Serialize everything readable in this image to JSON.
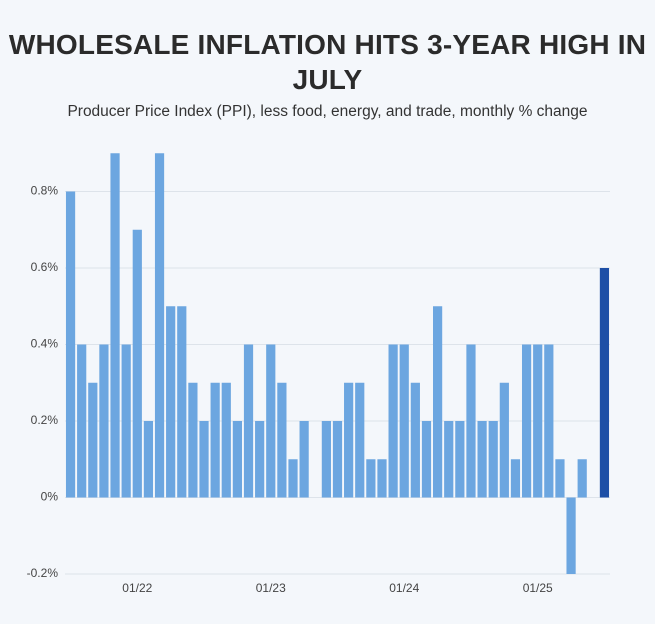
{
  "chart_data": {
    "type": "bar",
    "title": "WHOLESALE INFLATION HITS 3-YEAR HIGH IN JULY",
    "subtitle": "Producer Price Index (PPI), less food, energy, and trade, monthly % change",
    "categories": [
      null,
      null,
      null,
      null,
      null,
      null,
      "01/22",
      null,
      null,
      null,
      null,
      null,
      null,
      null,
      null,
      null,
      null,
      null,
      "01/23",
      null,
      null,
      null,
      null,
      null,
      null,
      null,
      null,
      null,
      null,
      null,
      "01/24",
      null,
      null,
      null,
      null,
      null,
      null,
      null,
      null,
      null,
      null,
      null,
      "01/25",
      null,
      null,
      null,
      null,
      null,
      null
    ],
    "values": [
      0.8,
      0.4,
      0.3,
      0.4,
      0.9,
      0.4,
      0.7,
      0.2,
      0.9,
      0.5,
      0.5,
      0.3,
      0.2,
      0.3,
      0.3,
      0.2,
      0.4,
      0.2,
      0.4,
      0.3,
      0.1,
      0.2,
      0,
      0.2,
      0.2,
      0.3,
      0.3,
      0.1,
      0.1,
      0.4,
      0.4,
      0.3,
      0.2,
      0.5,
      0.2,
      0.2,
      0.4,
      0.2,
      0.2,
      0.3,
      0.1,
      0.4,
      0.4,
      0.4,
      0.1,
      -0.2,
      0.1,
      0,
      0.6
    ],
    "colors": [
      "#6ca6e0",
      "#6ca6e0",
      "#6ca6e0",
      "#6ca6e0",
      "#6ca6e0",
      "#6ca6e0",
      "#6ca6e0",
      "#6ca6e0",
      "#6ca6e0",
      "#6ca6e0",
      "#6ca6e0",
      "#6ca6e0",
      "#6ca6e0",
      "#6ca6e0",
      "#6ca6e0",
      "#6ca6e0",
      "#6ca6e0",
      "#6ca6e0",
      "#6ca6e0",
      "#6ca6e0",
      "#6ca6e0",
      "#6ca6e0",
      "#6ca6e0",
      "#6ca6e0",
      "#6ca6e0",
      "#6ca6e0",
      "#6ca6e0",
      "#6ca6e0",
      "#6ca6e0",
      "#6ca6e0",
      "#6ca6e0",
      "#6ca6e0",
      "#6ca6e0",
      "#6ca6e0",
      "#6ca6e0",
      "#6ca6e0",
      "#6ca6e0",
      "#6ca6e0",
      "#6ca6e0",
      "#6ca6e0",
      "#6ca6e0",
      "#6ca6e0",
      "#6ca6e0",
      "#6ca6e0",
      "#6ca6e0",
      "#6ca6e0",
      "#6ca6e0",
      "#6ca6e0",
      "#1d4fa6"
    ],
    "ylim": [
      -0.2,
      0.9
    ],
    "yticks": [
      {
        "value": -0.2,
        "label": "-0.2%"
      },
      {
        "value": 0,
        "label": "0%"
      },
      {
        "value": 0.2,
        "label": "0.2%"
      },
      {
        "value": 0.4,
        "label": "0.4%"
      },
      {
        "value": 0.6,
        "label": "0.6%"
      },
      {
        "value": 0.8,
        "label": "0.8%"
      }
    ],
    "grid": true
  }
}
